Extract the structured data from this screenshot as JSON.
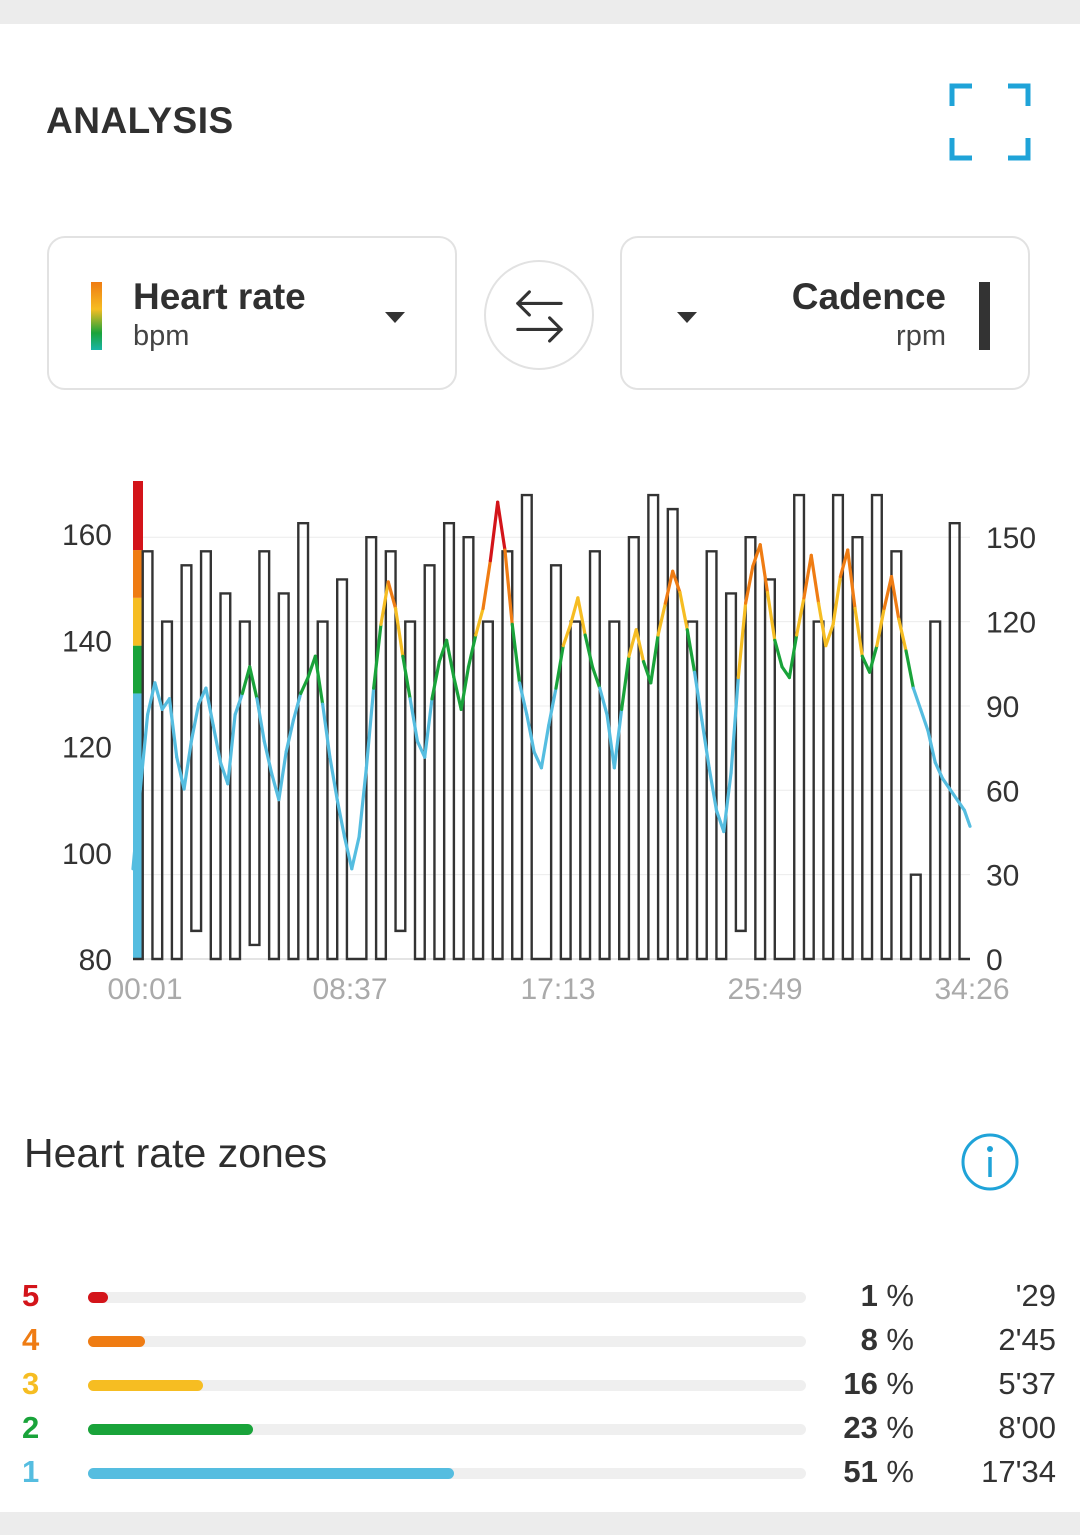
{
  "header": {
    "title": "ANALYSIS"
  },
  "selectors": {
    "left": {
      "label": "Heart rate",
      "unit": "bpm"
    },
    "right": {
      "label": "Cadence",
      "unit": "rpm"
    }
  },
  "colors": {
    "accent": "#1fa3d8",
    "zone1": "#55bde0",
    "zone2": "#19a33a",
    "zone3": "#f6bd22",
    "zone4": "#ef7c13",
    "zone5": "#d3141a",
    "cadence": "#333333"
  },
  "chart_data": {
    "type": "line",
    "x_ticks": [
      "00:01",
      "08:37",
      "17:13",
      "25:49",
      "34:26"
    ],
    "x_range_minutes": [
      0.02,
      34.43
    ],
    "y_left": {
      "label": "Heart rate (bpm)",
      "ticks": [
        80,
        100,
        120,
        140,
        160
      ],
      "range": [
        80,
        170
      ]
    },
    "y_right": {
      "label": "Cadence (rpm)",
      "ticks": [
        0,
        30,
        60,
        90,
        120,
        150
      ],
      "range": [
        0,
        170
      ]
    },
    "zone_bounds_bpm": [
      130,
      139,
      148,
      157
    ],
    "series": [
      {
        "name": "Heart rate",
        "unit": "bpm",
        "x": [
          0.0,
          0.3,
          0.6,
          0.9,
          1.2,
          1.5,
          1.8,
          2.1,
          2.4,
          2.7,
          3.0,
          3.3,
          3.6,
          3.9,
          4.2,
          4.5,
          4.8,
          5.1,
          5.4,
          5.7,
          6.0,
          6.3,
          6.6,
          6.9,
          7.2,
          7.5,
          7.8,
          8.1,
          8.4,
          8.7,
          9.0,
          9.3,
          9.6,
          9.9,
          10.2,
          10.5,
          10.8,
          11.1,
          11.4,
          11.7,
          12.0,
          12.3,
          12.6,
          12.9,
          13.2,
          13.5,
          13.8,
          14.1,
          14.4,
          14.7,
          15.0,
          15.3,
          15.6,
          15.9,
          16.2,
          16.5,
          16.8,
          17.1,
          17.4,
          17.7,
          18.0,
          18.3,
          18.6,
          18.9,
          19.2,
          19.5,
          19.8,
          20.1,
          20.4,
          20.7,
          21.0,
          21.3,
          21.6,
          21.9,
          22.2,
          22.5,
          22.8,
          23.1,
          23.4,
          23.7,
          24.0,
          24.3,
          24.6,
          24.9,
          25.2,
          25.5,
          25.8,
          26.1,
          26.4,
          26.7,
          27.0,
          27.3,
          27.6,
          27.9,
          28.2,
          28.5,
          28.8,
          29.1,
          29.4,
          29.7,
          30.0,
          30.3,
          30.6,
          30.9,
          31.2,
          31.5,
          31.8,
          32.1,
          32.4,
          32.7,
          33.0,
          33.3,
          33.6,
          33.9,
          34.2,
          34.43
        ],
        "values": [
          97,
          112,
          126,
          132,
          127,
          129,
          118,
          112,
          121,
          128,
          131,
          124,
          117,
          113,
          126,
          130,
          135,
          129,
          121,
          115,
          110,
          119,
          125,
          130,
          133,
          137,
          128,
          118,
          110,
          103,
          97,
          103,
          116,
          131,
          143,
          151,
          146,
          137,
          129,
          121,
          118,
          129,
          136,
          140,
          133,
          127,
          135,
          141,
          146,
          155,
          166,
          157,
          143,
          132,
          126,
          119,
          116,
          124,
          131,
          139,
          143,
          148,
          141,
          135,
          131,
          126,
          116,
          127,
          137,
          142,
          136,
          132,
          141,
          147,
          153,
          149,
          142,
          134,
          125,
          116,
          108,
          104,
          115,
          133,
          147,
          154,
          158,
          149,
          140,
          135,
          133,
          141,
          148,
          156,
          147,
          139,
          143,
          152,
          157,
          146,
          137,
          134,
          139,
          146,
          152,
          144,
          138,
          131,
          127,
          123,
          117,
          114,
          112,
          110,
          108,
          105
        ],
        "source": "approximate reading of the plotted curve"
      },
      {
        "name": "Cadence",
        "unit": "rpm",
        "x": [
          0.0,
          0.4,
          0.8,
          1.2,
          1.6,
          2.0,
          2.4,
          2.8,
          3.2,
          3.6,
          4.0,
          4.4,
          4.8,
          5.2,
          5.6,
          6.0,
          6.4,
          6.8,
          7.2,
          7.6,
          8.0,
          8.4,
          8.8,
          9.2,
          9.6,
          10.0,
          10.4,
          10.8,
          11.2,
          11.6,
          12.0,
          12.4,
          12.8,
          13.2,
          13.6,
          14.0,
          14.4,
          14.8,
          15.2,
          15.6,
          16.0,
          16.4,
          16.8,
          17.2,
          17.6,
          18.0,
          18.4,
          18.8,
          19.2,
          19.6,
          20.0,
          20.4,
          20.8,
          21.2,
          21.6,
          22.0,
          22.4,
          22.8,
          23.2,
          23.6,
          24.0,
          24.4,
          24.8,
          25.2,
          25.6,
          26.0,
          26.4,
          26.8,
          27.2,
          27.6,
          28.0,
          28.4,
          28.8,
          29.2,
          29.6,
          30.0,
          30.4,
          30.8,
          31.2,
          31.6,
          32.0,
          32.4,
          32.8,
          33.2,
          33.6,
          34.0,
          34.43
        ],
        "values": [
          0,
          145,
          0,
          120,
          0,
          140,
          10,
          145,
          0,
          130,
          0,
          120,
          5,
          145,
          0,
          130,
          0,
          155,
          0,
          120,
          0,
          135,
          0,
          0,
          150,
          0,
          145,
          10,
          120,
          0,
          140,
          0,
          155,
          0,
          150,
          0,
          120,
          0,
          145,
          0,
          165,
          0,
          0,
          140,
          0,
          120,
          0,
          145,
          0,
          120,
          0,
          150,
          0,
          165,
          0,
          160,
          0,
          120,
          0,
          145,
          0,
          130,
          10,
          150,
          0,
          135,
          0,
          0,
          165,
          0,
          120,
          0,
          165,
          0,
          150,
          0,
          165,
          0,
          145,
          0,
          30,
          0,
          120,
          0,
          155,
          0,
          0
        ],
        "source": "approximate reading of the plotted curve"
      }
    ]
  },
  "zones": {
    "title": "Heart rate zones",
    "rows": [
      {
        "zone": "5",
        "fraction": 0.01,
        "pct": "1",
        "pct_suffix": " %",
        "time": "'29"
      },
      {
        "zone": "4",
        "fraction": 0.08,
        "pct": "8",
        "pct_suffix": " %",
        "time": "2'45"
      },
      {
        "zone": "3",
        "fraction": 0.16,
        "pct": "16",
        "pct_suffix": " %",
        "time": "5'37"
      },
      {
        "zone": "2",
        "fraction": 0.23,
        "pct": "23",
        "pct_suffix": " %",
        "time": "8'00"
      },
      {
        "zone": "1",
        "fraction": 0.51,
        "pct": "51",
        "pct_suffix": " %",
        "time": "17'34"
      }
    ]
  }
}
